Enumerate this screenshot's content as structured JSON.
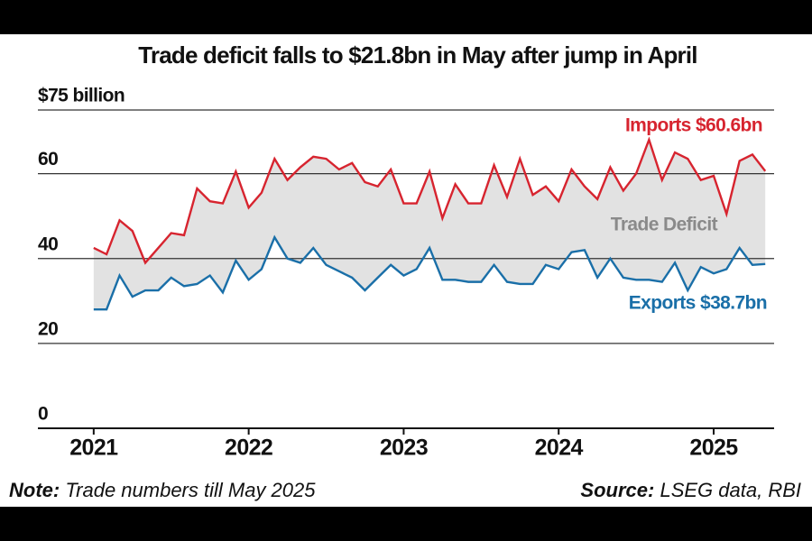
{
  "chart_data": {
    "type": "line",
    "title": "Trade deficit falls to $21.8bn in May after jump in April",
    "x": [
      2021.0,
      2021.083,
      2021.167,
      2021.25,
      2021.333,
      2021.417,
      2021.5,
      2021.583,
      2021.667,
      2021.75,
      2021.833,
      2021.917,
      2022.0,
      2022.083,
      2022.167,
      2022.25,
      2022.333,
      2022.417,
      2022.5,
      2022.583,
      2022.667,
      2022.75,
      2022.833,
      2022.917,
      2023.0,
      2023.083,
      2023.167,
      2023.25,
      2023.333,
      2023.417,
      2023.5,
      2023.583,
      2023.667,
      2023.75,
      2023.833,
      2023.917,
      2024.0,
      2024.083,
      2024.167,
      2024.25,
      2024.333,
      2024.417,
      2024.5,
      2024.583,
      2024.667,
      2024.75,
      2024.833,
      2024.917,
      2025.0,
      2025.083,
      2025.167,
      2025.25,
      2025.333
    ],
    "series": [
      {
        "name": "Imports $60.6bn",
        "color": "#d7242f",
        "values": [
          42.5,
          41,
          49,
          46.5,
          39,
          42.5,
          46,
          45.5,
          56.5,
          53.5,
          53,
          60.5,
          52,
          55.5,
          63.5,
          58.5,
          61.5,
          64,
          63.5,
          61,
          62.5,
          58,
          57,
          61,
          53,
          53,
          60.5,
          49.5,
          57.5,
          53,
          53,
          62,
          54.5,
          63.5,
          55,
          57,
          53.5,
          61,
          57,
          54,
          61.5,
          56,
          60,
          68,
          58.5,
          65,
          63.5,
          58.5,
          59.5,
          50.5,
          63,
          64.5,
          60.6
        ]
      },
      {
        "name": "Exports $38.7bn",
        "color": "#1a6fa8",
        "values": [
          28,
          28,
          36,
          31,
          32.5,
          32.5,
          35.5,
          33.5,
          34,
          36,
          32,
          39.5,
          35,
          37.5,
          45,
          40,
          39,
          42.5,
          38.5,
          37,
          35.5,
          32.5,
          35.5,
          38.5,
          36,
          37.5,
          42.5,
          35,
          35,
          34.5,
          34.5,
          38.5,
          34.5,
          34,
          34,
          38.5,
          37.5,
          41.5,
          42,
          35.5,
          40,
          35.5,
          35,
          35,
          34.5,
          39,
          32.5,
          38,
          36.5,
          37.5,
          42.5,
          38.5,
          38.7
        ]
      }
    ],
    "area_label": "Trade Deficit",
    "area_color": "#e2e2e2",
    "xlim": [
      2020.64,
      2025.39
    ],
    "xticks": [
      2021,
      2022,
      2023,
      2024,
      2025
    ],
    "ylim": [
      0,
      75
    ],
    "yticks": [
      0,
      20,
      40,
      60,
      {
        "value": 75,
        "label": "$75 billion"
      }
    ],
    "grid": true,
    "note_label": "Note:",
    "note_text": "Trade numbers till May 2025",
    "source_label": "Source:",
    "source_text": "LSEG data, RBI"
  }
}
